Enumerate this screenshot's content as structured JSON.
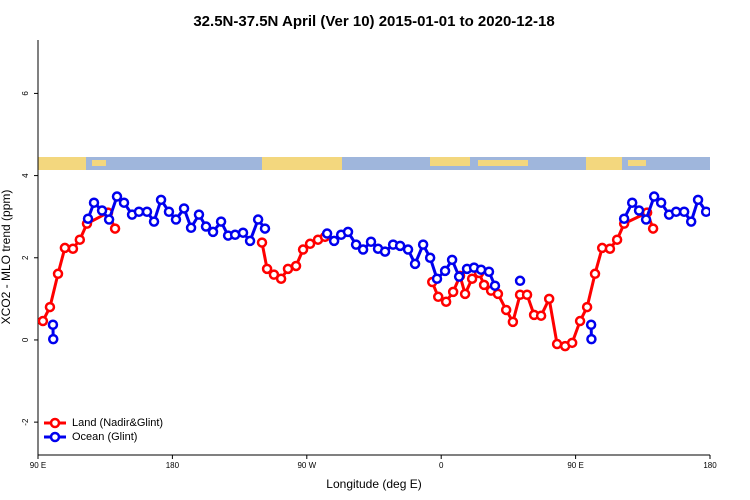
{
  "chart_data": {
    "type": "line",
    "title": "32.5N-37.5N April (Ver 10)   2015-01-01 to 2020-12-18",
    "x_label": "Longitude (deg E)",
    "y_label": "XCO2 - MLO trend (ppm)",
    "xlim": [
      90,
      540
    ],
    "ylim": [
      -2.8,
      7.3
    ],
    "xticks": [
      {
        "value": 90,
        "label": "90 E"
      },
      180,
      {
        "value": 270,
        "label": "90 W"
      },
      {
        "value": 360,
        "label": "0"
      },
      {
        "value": 450,
        "label": "90 E"
      },
      {
        "value": 540,
        "label": "180"
      }
    ],
    "yticks": [
      -2,
      0,
      2,
      4,
      6
    ],
    "legend": "bottom-left",
    "series": [
      {
        "name": "Land (Nadir&Glint)",
        "color": "#ff0000",
        "x": [
          93.3,
          98,
          103.4,
          108,
          113.4,
          118,
          122.8,
          136.9,
          141.6,
          null,
          240,
          243.4,
          248,
          252.8,
          257.4,
          262.8,
          267.5,
          272.2,
          277.5,
          282.2,
          null,
          354,
          358,
          363.3,
          368,
          372.6,
          376,
          380.7,
          385.4,
          388.7,
          393.4,
          398,
          403.5,
          408,
          412.8,
          417.5,
          422.2,
          426.9,
          432.3,
          437.6,
          443,
          447.7,
          453,
          457.7,
          463,
          467.8,
          473,
          477.8,
          482.5,
          497.9,
          501.9
        ],
        "values": [
          0.46,
          0.8,
          1.61,
          2.24,
          2.22,
          2.44,
          2.83,
          3.1,
          2.71,
          null,
          2.37,
          1.73,
          1.59,
          1.49,
          1.73,
          1.8,
          2.2,
          2.34,
          2.44,
          2.51,
          null,
          1.41,
          1.05,
          0.93,
          1.17,
          1.56,
          1.12,
          1.49,
          1.63,
          1.34,
          1.2,
          1.12,
          0.73,
          0.44,
          1.1,
          1.1,
          0.61,
          0.59,
          1.0,
          -0.1,
          -0.15,
          -0.07,
          0.46,
          0.8,
          1.61,
          2.24,
          2.22,
          2.44,
          2.83,
          3.1,
          2.71
        ]
      },
      {
        "name": "Ocean (Glint)",
        "color": "#0000ee",
        "x": [
          100,
          100.2,
          null,
          123.5,
          127.5,
          132.9,
          137.6,
          142.9,
          147.6,
          153,
          157.6,
          163,
          167.7,
          172.4,
          177.7,
          182.4,
          187.8,
          192.5,
          197.8,
          202.5,
          207.2,
          212.6,
          217.3,
          222,
          227.3,
          232,
          237.4,
          242,
          null,
          283.6,
          288.3,
          293,
          297.6,
          303,
          307.7,
          313,
          317.7,
          322.4,
          327.8,
          332.5,
          337.8,
          342.5,
          347.9,
          352.6,
          357.2,
          362.6,
          367.3,
          372,
          377.3,
          382,
          386.7,
          392,
          396,
          null,
          412.8,
          null,
          460.4,
          460.6,
          null,
          482.5,
          487.9,
          492.5,
          497.2,
          502.6,
          507.3,
          512.6,
          517.3,
          522.7,
          527.4,
          532,
          537.4
        ],
        "values": [
          0.37,
          0.02,
          null,
          2.95,
          3.34,
          3.15,
          2.93,
          3.49,
          3.34,
          3.05,
          3.12,
          3.12,
          2.88,
          3.41,
          3.12,
          2.93,
          3.2,
          2.73,
          3.05,
          2.76,
          2.63,
          2.88,
          2.54,
          2.56,
          2.61,
          2.41,
          2.93,
          2.71,
          null,
          2.59,
          2.41,
          2.56,
          2.63,
          2.32,
          2.2,
          2.39,
          2.22,
          2.15,
          2.32,
          2.29,
          2.2,
          1.85,
          2.32,
          2.0,
          1.49,
          1.68,
          1.95,
          1.54,
          1.73,
          1.76,
          1.71,
          1.66,
          1.32,
          null,
          1.44,
          null,
          0.37,
          0.02,
          null,
          2.95,
          3.34,
          3.15,
          2.93,
          3.49,
          3.34,
          3.05,
          3.12,
          3.12,
          2.88,
          3.41,
          3.12
        ]
      }
    ]
  }
}
